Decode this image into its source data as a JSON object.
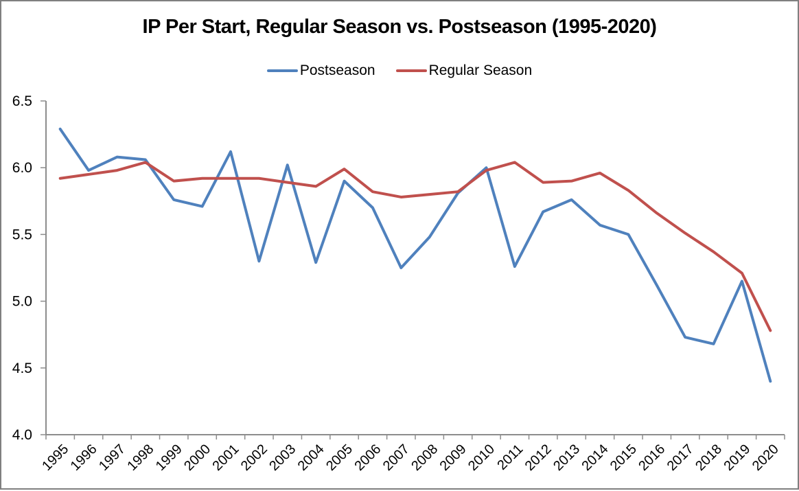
{
  "chart_data": {
    "type": "line",
    "title": "IP Per Start, Regular Season vs. Postseason (1995-2020)",
    "categories": [
      "1995",
      "1996",
      "1997",
      "1998",
      "1999",
      "2000",
      "2001",
      "2002",
      "2003",
      "2004",
      "2005",
      "2006",
      "2007",
      "2008",
      "2009",
      "2010",
      "2011",
      "2012",
      "2013",
      "2014",
      "2015",
      "2016",
      "2017",
      "2018",
      "2019",
      "2020"
    ],
    "series": [
      {
        "name": "Postseason",
        "color": "#4F81BD",
        "values": [
          6.29,
          5.98,
          6.08,
          6.06,
          5.76,
          5.71,
          6.12,
          5.3,
          6.02,
          5.29,
          5.9,
          5.7,
          5.25,
          5.48,
          5.81,
          6.0,
          5.26,
          5.67,
          5.76,
          5.57,
          5.5,
          5.12,
          4.73,
          4.68,
          5.15,
          4.4
        ]
      },
      {
        "name": "Regular Season",
        "color": "#C0504D",
        "values": [
          5.92,
          5.95,
          5.98,
          6.04,
          5.9,
          5.92,
          5.92,
          5.92,
          5.89,
          5.86,
          5.99,
          5.82,
          5.78,
          5.8,
          5.82,
          5.98,
          6.04,
          5.89,
          5.9,
          5.96,
          5.83,
          5.66,
          5.51,
          5.37,
          5.21,
          4.78
        ]
      }
    ],
    "ylim": [
      4.0,
      6.5
    ],
    "yticks": [
      "6.5",
      "6.0",
      "5.5",
      "5.0",
      "4.5",
      "4.0"
    ],
    "xtick_rotation": 45,
    "grid": false,
    "legend_position": "top-center",
    "axis_color": "#8C8C8C",
    "text_color": "#000000"
  }
}
